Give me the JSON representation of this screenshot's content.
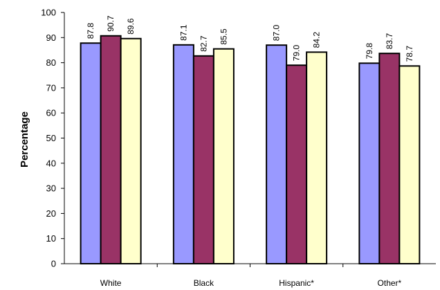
{
  "chart_data": {
    "type": "bar",
    "categories": [
      "White",
      "Black",
      "Hispanic*",
      "Other*"
    ],
    "series": [
      {
        "values": [
          87.8,
          87.1,
          87.0,
          79.8
        ],
        "color": "#9999FF"
      },
      {
        "values": [
          90.7,
          82.7,
          79.0,
          83.7
        ],
        "color": "#993366"
      },
      {
        "values": [
          89.6,
          85.5,
          84.2,
          78.7
        ],
        "color": "#FFFFCC"
      }
    ],
    "title": "",
    "xlabel": "",
    "ylabel": "Percentage",
    "ylim": [
      0,
      100
    ],
    "yticks": [
      0,
      10,
      20,
      30,
      40,
      50,
      60,
      70,
      80,
      90,
      100
    ],
    "grid": false,
    "data_label_format": "one-decimal, rotated vertical above each bar"
  }
}
